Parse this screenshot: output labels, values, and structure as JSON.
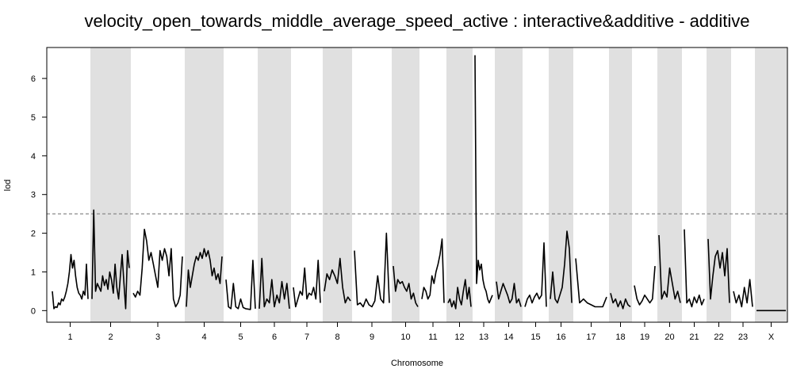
{
  "chart_data": {
    "type": "line",
    "title": "velocity_open_towards_middle_average_speed_active : interactive&additive - additive",
    "xlabel": "Chromosome",
    "ylabel": "lod",
    "ylim": [
      -0.3,
      6.8
    ],
    "yticks": [
      0,
      1,
      2,
      3,
      4,
      5,
      6
    ],
    "threshold": 2.5,
    "shading": "alternate chromosomes shaded light gray",
    "line_color": "#000000",
    "shade_color": "#e0e0e0",
    "threshold_color": "#888888",
    "chromosomes": [
      {
        "label": "1",
        "shaded": false,
        "lod": [
          0.5,
          0.05,
          0.1,
          0.08,
          0.2,
          0.15,
          0.3,
          0.25,
          0.35,
          0.5,
          0.7,
          1.0,
          1.45,
          1.1,
          1.3,
          0.9,
          0.6,
          0.45,
          0.4,
          0.3,
          0.5,
          0.4,
          1.2,
          0.3
        ]
      },
      {
        "label": "2",
        "shaded": true,
        "lod": [
          0.3,
          2.6,
          0.5,
          0.7,
          0.6,
          0.5,
          0.9,
          0.65,
          0.8,
          0.55,
          1.0,
          0.8,
          0.45,
          1.2,
          0.6,
          0.3,
          0.9,
          1.45,
          0.7,
          0.05,
          1.55,
          1.1
        ]
      },
      {
        "label": "3",
        "shaded": false,
        "lod": [
          0.45,
          0.35,
          0.5,
          0.4,
          1.1,
          2.1,
          1.8,
          1.3,
          1.5,
          1.2,
          0.9,
          0.6,
          1.55,
          1.3,
          1.6,
          1.4,
          0.9,
          1.6,
          0.3,
          0.1,
          0.2,
          0.4,
          1.4
        ]
      },
      {
        "label": "4",
        "shaded": true,
        "lod": [
          0.1,
          1.05,
          0.6,
          0.9,
          1.2,
          1.4,
          1.3,
          1.5,
          1.35,
          1.6,
          1.4,
          1.55,
          1.3,
          0.9,
          1.1,
          0.8,
          0.95,
          0.7,
          1.4
        ]
      },
      {
        "label": "5",
        "shaded": false,
        "lod": [
          0.8,
          0.1,
          0.05,
          0.7,
          0.1,
          0.05,
          0.3,
          0.08,
          0.05,
          0.04,
          0.03,
          1.3,
          0.05
        ]
      },
      {
        "label": "6",
        "shaded": true,
        "lod": [
          0.05,
          1.35,
          0.1,
          0.3,
          0.2,
          0.8,
          0.1,
          0.4,
          0.2,
          0.75,
          0.3,
          0.7,
          0.05
        ]
      },
      {
        "label": "7",
        "shaded": false,
        "lod": [
          0.6,
          0.1,
          0.3,
          0.5,
          0.4,
          1.1,
          0.3,
          0.45,
          0.4,
          0.6,
          0.3,
          1.3,
          0.2
        ]
      },
      {
        "label": "8",
        "shaded": true,
        "lod": [
          0.5,
          0.95,
          0.8,
          1.05,
          0.9,
          0.7,
          1.35,
          0.6,
          0.2,
          0.35,
          0.25
        ]
      },
      {
        "label": "9",
        "shaded": false,
        "lod": [
          1.55,
          0.15,
          0.2,
          0.1,
          0.3,
          0.15,
          0.1,
          0.25,
          0.9,
          0.3,
          0.2,
          2.0,
          0.2
        ]
      },
      {
        "label": "10",
        "shaded": true,
        "lod": [
          1.15,
          0.5,
          0.8,
          0.7,
          0.75,
          0.6,
          0.5,
          0.7,
          0.3,
          0.45,
          0.2,
          0.1
        ]
      },
      {
        "label": "11",
        "shaded": false,
        "lod": [
          0.3,
          0.6,
          0.5,
          0.3,
          0.4,
          0.9,
          0.7,
          1.0,
          1.2,
          1.45,
          1.85,
          0.2
        ]
      },
      {
        "label": "12",
        "shaded": true,
        "lod": [
          0.2,
          0.3,
          0.1,
          0.25,
          0.05,
          0.6,
          0.3,
          0.15,
          0.5,
          0.8,
          0.3,
          0.6,
          0.1
        ]
      },
      {
        "label": "13",
        "shaded": false,
        "lod": [
          6.6,
          0.7,
          1.3,
          1.05,
          1.2,
          0.8,
          0.6,
          0.5,
          0.3,
          0.2,
          0.3,
          0.4
        ]
      },
      {
        "label": "14",
        "shaded": true,
        "lod": [
          0.75,
          0.3,
          0.5,
          0.7,
          0.55,
          0.4,
          0.2,
          0.3,
          0.7,
          0.2,
          0.3,
          0.1
        ]
      },
      {
        "label": "15",
        "shaded": false,
        "lod": [
          0.1,
          0.3,
          0.4,
          0.2,
          0.35,
          0.45,
          0.3,
          0.4,
          1.75,
          0.1
        ]
      },
      {
        "label": "16",
        "shaded": true,
        "lod": [
          0.3,
          1.0,
          0.3,
          0.2,
          0.4,
          0.6,
          1.2,
          2.05,
          1.6,
          0.2
        ]
      },
      {
        "label": "17",
        "shaded": false,
        "lod": [
          1.35,
          0.2,
          0.3,
          0.2,
          0.15,
          0.1,
          0.1,
          0.1,
          0.35
        ]
      },
      {
        "label": "18",
        "shaded": true,
        "lod": [
          0.45,
          0.2,
          0.3,
          0.1,
          0.25,
          0.05,
          0.3,
          0.15,
          0.1
        ]
      },
      {
        "label": "19",
        "shaded": false,
        "lod": [
          0.65,
          0.3,
          0.15,
          0.25,
          0.4,
          0.3,
          0.2,
          0.3,
          1.15
        ]
      },
      {
        "label": "20",
        "shaded": true,
        "lod": [
          1.95,
          0.3,
          0.5,
          0.35,
          1.1,
          0.7,
          0.3,
          0.5,
          0.2
        ]
      },
      {
        "label": "21",
        "shaded": false,
        "lod": [
          2.1,
          0.2,
          0.3,
          0.1,
          0.35,
          0.2,
          0.4,
          0.15,
          0.3
        ]
      },
      {
        "label": "22",
        "shaded": true,
        "lod": [
          1.85,
          0.3,
          0.9,
          1.4,
          1.55,
          1.1,
          1.5,
          0.9,
          1.6,
          0.2
        ]
      },
      {
        "label": "23",
        "shaded": false,
        "lod": [
          0.5,
          0.2,
          0.4,
          0.1,
          0.6,
          0.2,
          0.8,
          0.1
        ]
      },
      {
        "label": "X",
        "shaded": true,
        "lod": [
          0.0,
          0.0,
          0.0,
          0.0
        ]
      }
    ]
  }
}
